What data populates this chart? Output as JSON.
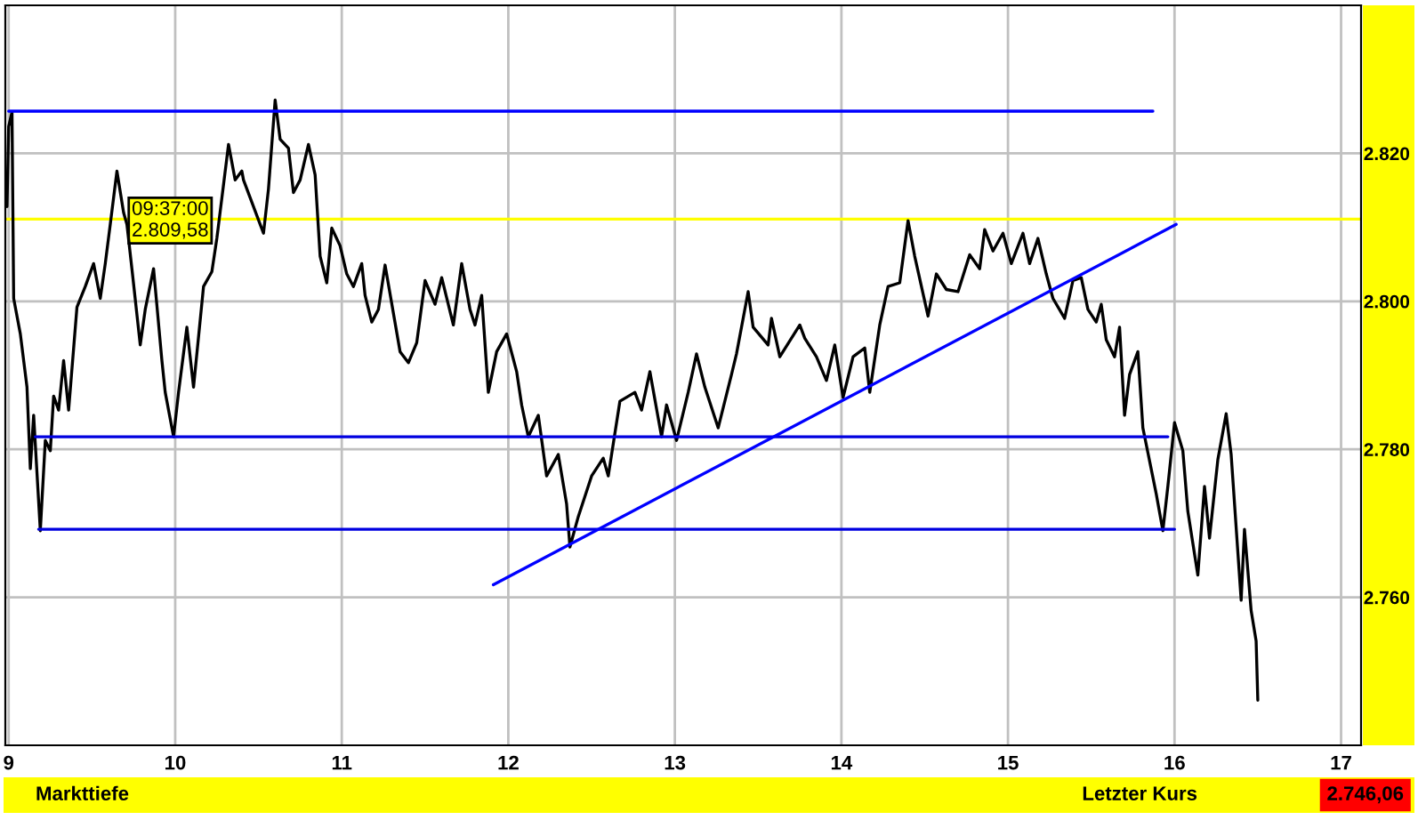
{
  "chart_data": {
    "type": "line",
    "x": [
      8.99,
      9.0,
      9.02,
      9.03,
      9.07,
      9.11,
      9.13,
      9.15,
      9.19,
      9.22,
      9.25,
      9.27,
      9.3,
      9.33,
      9.36,
      9.41,
      9.46,
      9.51,
      9.55,
      9.58,
      9.61,
      9.65,
      9.69,
      9.71,
      9.74,
      9.79,
      9.82,
      9.87,
      9.92,
      9.94,
      9.99,
      10.02,
      10.07,
      10.11,
      10.17,
      10.22,
      10.25,
      10.32,
      10.36,
      10.4,
      10.41,
      10.53,
      10.56,
      10.6,
      10.63,
      10.68,
      10.71,
      10.75,
      10.8,
      10.84,
      10.87,
      10.91,
      10.94,
      10.99,
      11.03,
      11.07,
      11.12,
      11.14,
      11.18,
      11.22,
      11.26,
      11.35,
      11.4,
      11.45,
      11.5,
      11.56,
      11.6,
      11.67,
      11.72,
      11.77,
      11.8,
      11.84,
      11.88,
      11.93,
      11.99,
      12.05,
      12.08,
      12.12,
      12.18,
      12.23,
      12.3,
      12.35,
      12.37,
      12.42,
      12.5,
      12.57,
      12.6,
      12.67,
      12.76,
      12.8,
      12.85,
      12.92,
      12.95,
      13.01,
      13.08,
      13.13,
      13.18,
      13.26,
      13.34,
      13.37,
      13.44,
      13.47,
      13.56,
      13.58,
      13.63,
      13.75,
      13.78,
      13.85,
      13.91,
      13.96,
      14.01,
      14.07,
      14.14,
      14.17,
      14.23,
      14.28,
      14.35,
      14.4,
      14.44,
      14.52,
      14.57,
      14.63,
      14.7,
      14.77,
      14.83,
      14.86,
      14.91,
      14.97,
      15.02,
      15.09,
      15.13,
      15.18,
      15.23,
      15.27,
      15.34,
      15.39,
      15.44,
      15.48,
      15.53,
      15.56,
      15.59,
      15.64,
      15.67,
      15.7,
      15.73,
      15.78,
      15.81,
      15.89,
      15.93,
      15.96,
      16.0,
      16.05,
      16.08,
      16.14,
      16.18,
      16.21,
      16.26,
      16.31,
      16.34,
      16.4,
      16.42,
      16.46,
      16.49,
      16.5
    ],
    "series": [
      {
        "color": "#000000",
        "values": [
          2812.8,
          2823.6,
          2825.6,
          2800.4,
          2795.6,
          2788.4,
          2777.4,
          2784.6,
          2769.0,
          2781.2,
          2779.8,
          2787.2,
          2785.3,
          2792.0,
          2785.3,
          2799.2,
          2802.0,
          2805.1,
          2800.4,
          2805.1,
          2810.4,
          2817.6,
          2812.0,
          2810.4,
          2804.4,
          2794.1,
          2798.9,
          2804.4,
          2792.0,
          2787.7,
          2781.7,
          2787.7,
          2796.5,
          2788.4,
          2802.0,
          2804.0,
          2808.5,
          2821.2,
          2816.4,
          2817.6,
          2816.4,
          2809.2,
          2815.2,
          2827.2,
          2821.9,
          2820.7,
          2814.7,
          2816.4,
          2821.2,
          2817.1,
          2806.1,
          2802.5,
          2809.9,
          2807.5,
          2803.7,
          2802.0,
          2805.1,
          2800.8,
          2797.2,
          2798.9,
          2804.9,
          2793.2,
          2791.7,
          2794.4,
          2802.8,
          2799.6,
          2803.2,
          2796.8,
          2805.1,
          2798.9,
          2796.8,
          2800.8,
          2787.7,
          2793.2,
          2795.6,
          2790.5,
          2786.0,
          2781.7,
          2784.6,
          2776.4,
          2779.3,
          2772.6,
          2766.8,
          2770.9,
          2776.4,
          2778.8,
          2776.4,
          2786.5,
          2787.7,
          2785.3,
          2790.5,
          2781.7,
          2786.0,
          2781.2,
          2787.7,
          2792.9,
          2788.4,
          2782.9,
          2790.1,
          2792.9,
          2801.3,
          2796.5,
          2794.1,
          2797.7,
          2792.5,
          2796.8,
          2795.0,
          2792.5,
          2789.3,
          2794.1,
          2787.0,
          2792.5,
          2793.7,
          2787.7,
          2796.8,
          2802.0,
          2802.5,
          2810.9,
          2806.1,
          2798.0,
          2803.7,
          2801.6,
          2801.3,
          2806.3,
          2804.4,
          2809.7,
          2806.8,
          2809.2,
          2805.1,
          2809.2,
          2805.1,
          2808.5,
          2803.7,
          2800.4,
          2797.7,
          2802.8,
          2803.2,
          2798.9,
          2797.2,
          2799.6,
          2794.8,
          2792.5,
          2796.5,
          2784.6,
          2790.1,
          2793.2,
          2782.9,
          2774.0,
          2769.0,
          2775.0,
          2783.6,
          2779.8,
          2771.6,
          2763.0,
          2775.0,
          2768.0,
          2778.6,
          2784.8,
          2779.3,
          2759.6,
          2769.2,
          2758.2,
          2754.1,
          2746.1
        ]
      },
      {
        "color": "#0000ff",
        "x": [
          9.0,
          15.87
        ],
        "values": [
          2825.7,
          2825.7
        ]
      },
      {
        "color": "#0000e0",
        "x": [
          9.16,
          15.96
        ],
        "values": [
          2781.7,
          2781.7
        ]
      },
      {
        "color": "#0000e0",
        "x": [
          9.18,
          16.0
        ],
        "values": [
          2769.2,
          2769.2
        ]
      },
      {
        "color": "#0000ff",
        "x": [
          11.91,
          16.01
        ],
        "values": [
          2761.7,
          2810.4
        ]
      }
    ],
    "ref_lines": [
      {
        "axis": "y",
        "value": 2811.1,
        "color": "#ffff00"
      }
    ],
    "xlim": [
      8.98,
      17.12
    ],
    "ylim": [
      2740,
      2840
    ],
    "xticks": [
      9,
      10,
      11,
      12,
      13,
      14,
      15,
      16,
      17
    ],
    "yticks": [
      {
        "value": 2760,
        "label": "2.760"
      },
      {
        "value": 2780,
        "label": "2.780"
      },
      {
        "value": 2800,
        "label": "2.800"
      },
      {
        "value": 2820,
        "label": "2.820"
      }
    ],
    "grid": true,
    "legend": false,
    "annotations": [
      {
        "text": "09:37:00\n2.809,58",
        "x": 9.62,
        "y": 2809.58
      },
      "Markttiefe",
      "Letzter Kurs",
      "2.746,06"
    ]
  }
}
